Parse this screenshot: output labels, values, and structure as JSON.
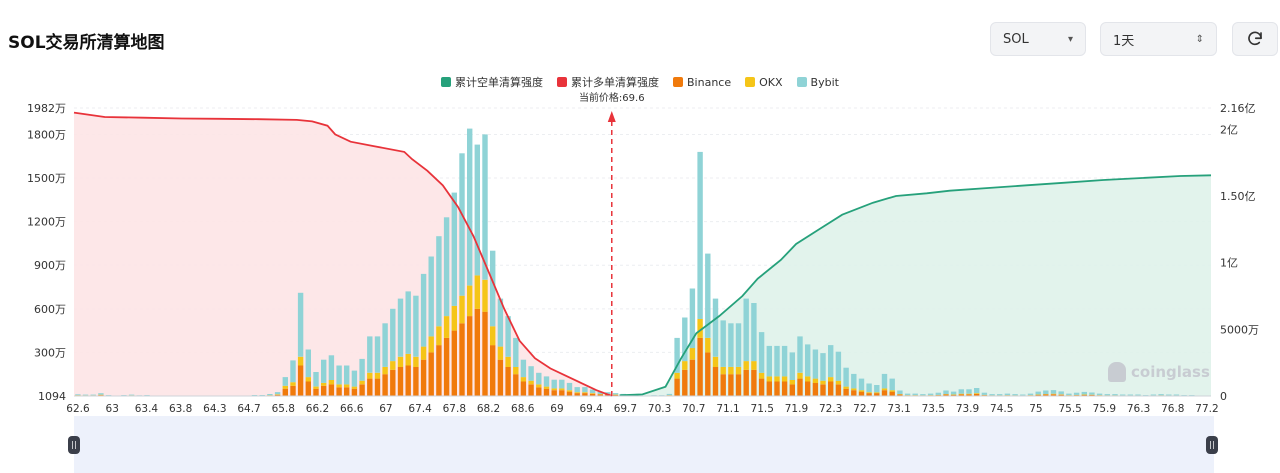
{
  "page": {
    "title": "SOL交易所清算地图"
  },
  "controls": {
    "coin_value": "SOL",
    "coin_caret": "▾",
    "range_value": "1天",
    "range_caret": "⇕",
    "refresh_icon": "refresh-icon"
  },
  "legend": [
    {
      "label": "累计空单清算强度",
      "color": "#26a17b"
    },
    {
      "label": "累计多单清算强度",
      "color": "#e8333a"
    },
    {
      "label": "Binance",
      "color": "#f07a0c"
    },
    {
      "label": "OKX",
      "color": "#f5c518"
    },
    {
      "label": "Bybit",
      "color": "#8fd3d6"
    }
  ],
  "watermark": "coinglass",
  "chart_data": {
    "type": "bar",
    "current_price_label": "当前价格:69.6",
    "current_price": 69.6,
    "x_tick_labels": [
      "62.6",
      "63",
      "63.4",
      "63.8",
      "64.3",
      "64.7",
      "65.8",
      "66.2",
      "66.6",
      "67",
      "67.4",
      "67.8",
      "68.2",
      "68.6",
      "69",
      "69.4",
      "69.7",
      "70.3",
      "70.7",
      "71.1",
      "71.5",
      "71.9",
      "72.3",
      "72.7",
      "73.1",
      "73.5",
      "73.9",
      "74.5",
      "75",
      "75.5",
      "75.9",
      "76.3",
      "76.8",
      "77.2"
    ],
    "y_left_ticks": [
      "1094",
      "300万",
      "600万",
      "900万",
      "1200万",
      "1500万",
      "1800万",
      "1982万"
    ],
    "y_left_values": [
      1094,
      3000000,
      6000000,
      9000000,
      12000000,
      15000000,
      18000000,
      19820000
    ],
    "y_left_range": [
      0,
      19820000
    ],
    "y_right_ticks": [
      "0",
      "5000万",
      "1亿",
      "1.50亿",
      "2亿",
      "2.16亿"
    ],
    "y_right_values": [
      0,
      50000000,
      100000000,
      150000000,
      200000000,
      216000000
    ],
    "y_right_range": [
      0,
      216000000
    ],
    "x_range": [
      62.6,
      77.4
    ],
    "grid": true,
    "legend_position": "top-center",
    "bars": {
      "x": [
        62.65,
        62.75,
        62.85,
        62.95,
        63.05,
        63.15,
        63.25,
        63.35,
        63.45,
        63.55,
        63.65,
        63.75,
        63.85,
        63.95,
        64.05,
        64.15,
        64.25,
        64.35,
        64.45,
        64.55,
        64.65,
        64.75,
        64.85,
        64.95,
        65.05,
        65.15,
        65.25,
        65.35,
        65.45,
        65.55,
        65.65,
        65.75,
        65.85,
        65.95,
        66.05,
        66.15,
        66.25,
        66.35,
        66.45,
        66.55,
        66.65,
        66.75,
        66.85,
        66.95,
        67.05,
        67.15,
        67.25,
        67.35,
        67.45,
        67.55,
        67.65,
        67.75,
        67.85,
        67.95,
        68.05,
        68.15,
        68.25,
        68.35,
        68.45,
        68.55,
        68.65,
        68.75,
        68.85,
        68.95,
        69.05,
        69.15,
        69.25,
        69.35,
        69.45,
        69.55,
        69.65,
        69.75,
        69.85,
        69.95,
        70.05,
        70.15,
        70.25,
        70.35,
        70.45,
        70.55,
        70.65,
        70.75,
        70.85,
        70.95,
        71.05,
        71.15,
        71.25,
        71.35,
        71.45,
        71.55,
        71.65,
        71.75,
        71.85,
        71.95,
        72.05,
        72.15,
        72.25,
        72.35,
        72.45,
        72.55,
        72.65,
        72.75,
        72.85,
        72.95,
        73.05,
        73.15,
        73.25,
        73.35,
        73.45,
        73.55,
        73.65,
        73.75,
        73.85,
        73.95,
        74.05,
        74.15,
        74.25,
        74.35,
        74.45,
        74.55,
        74.65,
        74.75,
        74.85,
        74.95,
        75.05,
        75.15,
        75.25,
        75.35,
        75.45,
        75.55,
        75.65,
        75.75,
        75.85,
        75.95,
        76.05,
        76.15,
        76.25,
        76.35,
        76.45,
        76.55,
        76.65,
        76.75,
        76.85,
        76.95,
        77.05,
        77.15,
        77.25,
        77.35
      ],
      "series": [
        {
          "name": "Binance",
          "values": [
            40000,
            30000,
            30000,
            60000,
            20000,
            10000,
            20000,
            30000,
            15000,
            20000,
            10000,
            10000,
            8000,
            8000,
            10000,
            8000,
            8000,
            10000,
            10000,
            8000,
            10000,
            8000,
            10000,
            20000,
            20000,
            40000,
            80000,
            500000,
            700000,
            2100000,
            1000000,
            500000,
            700000,
            800000,
            600000,
            600000,
            500000,
            800000,
            1200000,
            1200000,
            1500000,
            1800000,
            2000000,
            2100000,
            2000000,
            2500000,
            3000000,
            3500000,
            4000000,
            4500000,
            5000000,
            5500000,
            6000000,
            5800000,
            3500000,
            2500000,
            2000000,
            1500000,
            1000000,
            800000,
            600000,
            500000,
            400000,
            400000,
            300000,
            200000,
            200000,
            150000,
            100000,
            100000,
            80000,
            50000,
            20000,
            10000,
            10000,
            20000,
            20000,
            50000,
            1200000,
            1800000,
            2500000,
            4000000,
            3000000,
            2000000,
            1500000,
            1500000,
            1500000,
            1800000,
            1800000,
            1200000,
            1000000,
            1000000,
            1000000,
            800000,
            1200000,
            1000000,
            900000,
            800000,
            1000000,
            800000,
            500000,
            400000,
            300000,
            200000,
            200000,
            400000,
            300000,
            100000,
            50000,
            50000,
            40000,
            50000,
            60000,
            100000,
            80000,
            120000,
            120000,
            150000,
            60000,
            40000,
            40000,
            50000,
            40000,
            30000,
            50000,
            80000,
            100000,
            120000,
            90000,
            50000,
            60000,
            80000,
            70000,
            50000,
            40000,
            40000,
            30000,
            30000,
            30000,
            20000,
            30000,
            40000,
            30000,
            30000,
            20000,
            20000
          ]
        },
        {
          "name": "OKX",
          "values": [
            20000,
            15000,
            15000,
            30000,
            10000,
            5000,
            10000,
            15000,
            8000,
            10000,
            5000,
            5000,
            4000,
            4000,
            5000,
            4000,
            4000,
            5000,
            5000,
            4000,
            5000,
            4000,
            5000,
            10000,
            10000,
            20000,
            40000,
            200000,
            250000,
            600000,
            300000,
            150000,
            200000,
            300000,
            200000,
            200000,
            150000,
            250000,
            400000,
            400000,
            500000,
            600000,
            700000,
            800000,
            700000,
            900000,
            1100000,
            1300000,
            1500000,
            1700000,
            1900000,
            2100000,
            2300000,
            2200000,
            1300000,
            900000,
            700000,
            500000,
            300000,
            250000,
            200000,
            150000,
            120000,
            120000,
            100000,
            60000,
            60000,
            50000,
            30000,
            30000,
            20000,
            15000,
            5000,
            3000,
            3000,
            5000,
            5000,
            15000,
            400000,
            600000,
            800000,
            1300000,
            1000000,
            700000,
            500000,
            500000,
            500000,
            600000,
            600000,
            400000,
            350000,
            350000,
            350000,
            300000,
            400000,
            350000,
            300000,
            250000,
            300000,
            250000,
            150000,
            120000,
            100000,
            60000,
            60000,
            120000,
            100000,
            30000,
            15000,
            15000,
            12000,
            15000,
            20000,
            30000,
            25000,
            40000,
            40000,
            50000,
            20000,
            12000,
            12000,
            15000,
            12000,
            10000,
            15000,
            25000,
            30000,
            35000,
            30000,
            15000,
            20000,
            25000,
            20000,
            15000,
            12000,
            12000,
            10000,
            10000,
            10000,
            5000,
            10000,
            12000,
            10000,
            10000,
            5000,
            5000
          ]
        },
        {
          "name": "Bybit",
          "values": [
            60000,
            50000,
            50000,
            100000,
            30000,
            20000,
            30000,
            50000,
            25000,
            30000,
            20000,
            20000,
            15000,
            15000,
            20000,
            15000,
            15000,
            20000,
            20000,
            15000,
            20000,
            15000,
            20000,
            40000,
            40000,
            80000,
            150000,
            600000,
            1500000,
            4400000,
            1900000,
            1000000,
            1600000,
            1700000,
            1300000,
            1300000,
            1100000,
            1500000,
            2500000,
            2500000,
            3000000,
            3600000,
            4000000,
            4300000,
            4200000,
            5000000,
            5500000,
            6200000,
            6800000,
            7800000,
            9800000,
            10800000,
            9000000,
            10000000,
            5200000,
            3300000,
            2800000,
            2000000,
            1200000,
            1000000,
            800000,
            700000,
            600000,
            600000,
            500000,
            350000,
            350000,
            250000,
            150000,
            130000,
            100000,
            80000,
            30000,
            20000,
            20000,
            30000,
            30000,
            80000,
            2400000,
            3000000,
            4100000,
            11500000,
            5800000,
            4000000,
            3200000,
            3000000,
            3000000,
            4300000,
            4000000,
            2800000,
            2100000,
            2100000,
            2100000,
            1900000,
            2500000,
            2200000,
            2000000,
            1900000,
            2200000,
            2000000,
            1300000,
            1000000,
            800000,
            600000,
            500000,
            1000000,
            800000,
            250000,
            100000,
            100000,
            80000,
            100000,
            150000,
            250000,
            200000,
            300000,
            300000,
            350000,
            150000,
            80000,
            80000,
            100000,
            80000,
            60000,
            100000,
            200000,
            250000,
            250000,
            200000,
            100000,
            150000,
            180000,
            150000,
            100000,
            80000,
            80000,
            60000,
            60000,
            60000,
            40000,
            60000,
            80000,
            60000,
            60000,
            40000,
            40000
          ]
        }
      ]
    },
    "lines": {
      "long_cumulative": {
        "name": "累计多单清算强度",
        "x": [
          62.6,
          63.0,
          63.5,
          64.0,
          64.5,
          65.0,
          65.5,
          65.7,
          65.9,
          66.0,
          66.2,
          66.5,
          66.9,
          67.0,
          67.2,
          67.4,
          67.6,
          67.8,
          68.0,
          68.2,
          68.4,
          68.6,
          68.8,
          69.0,
          69.2,
          69.4,
          69.6
        ],
        "values": [
          19500000,
          19200000,
          19150000,
          19100000,
          19080000,
          19050000,
          19000000,
          18900000,
          18600000,
          18000000,
          17500000,
          17200000,
          16800000,
          16300000,
          15500000,
          14500000,
          13000000,
          11000000,
          8500000,
          6000000,
          3800000,
          2600000,
          1900000,
          1400000,
          900000,
          400000,
          0
        ]
      },
      "short_cumulative": {
        "name": "累计空单清算强度",
        "x": [
          69.7,
          70.0,
          70.3,
          70.5,
          70.7,
          71.0,
          71.3,
          71.5,
          71.8,
          72.0,
          72.3,
          72.6,
          73.0,
          73.3,
          73.7,
          74.0,
          74.5,
          75.0,
          75.5,
          76.0,
          76.5,
          77.0,
          77.4
        ],
        "values": [
          500000,
          1200000,
          7000000,
          28000000,
          47000000,
          60000000,
          75000000,
          88000000,
          102000000,
          114000000,
          125000000,
          136000000,
          145000000,
          150000000,
          152000000,
          154000000,
          156000000,
          158000000,
          160000000,
          162000000,
          163500000,
          165000000,
          165500000
        ]
      }
    }
  }
}
